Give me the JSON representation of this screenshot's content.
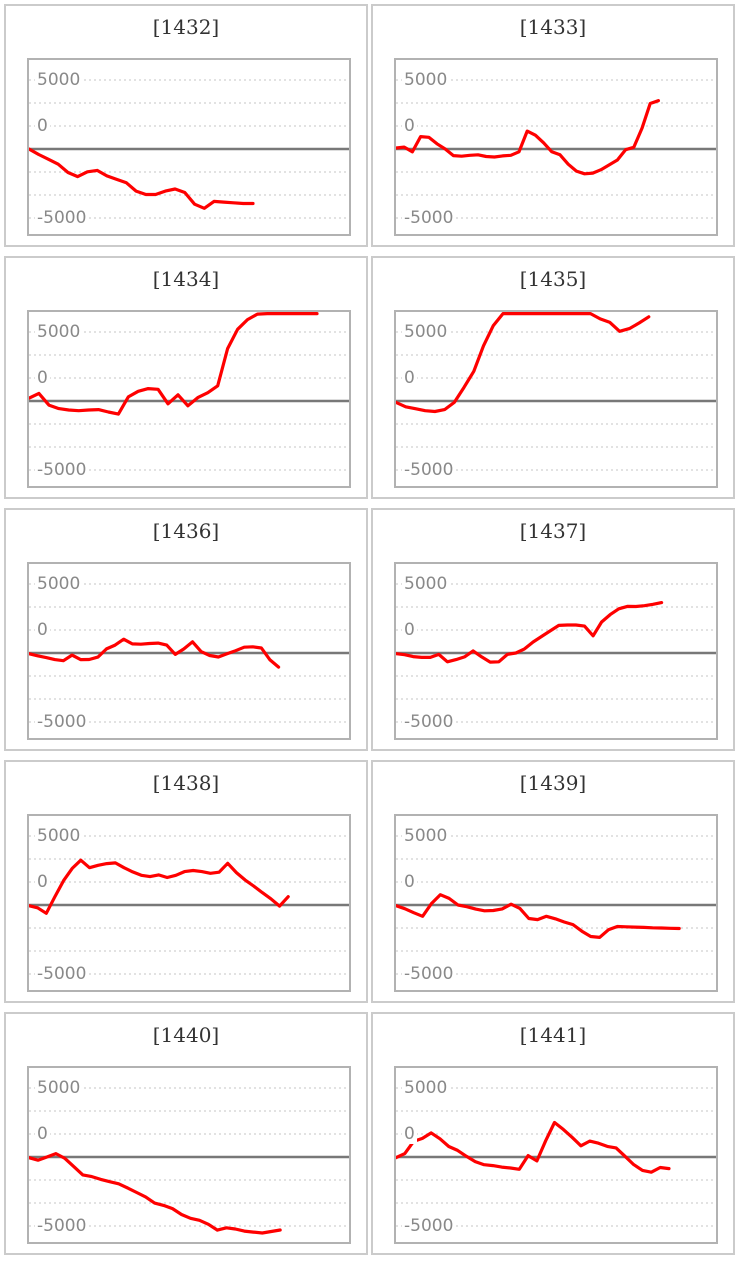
{
  "grid": {
    "rows": 5,
    "cols": 2
  },
  "axis": {
    "tick_labels": {
      "pos": "5000",
      "zero": "0",
      "neg": "-5000"
    },
    "tick_values": [
      5000,
      0,
      -5000
    ],
    "gridline_values": [
      5000,
      3333,
      1667,
      0,
      -1667,
      -3333,
      -5000
    ],
    "ylim": [
      -6300,
      6600
    ],
    "xticks": []
  },
  "style": {
    "line_color": "#fe0000",
    "zero_line_color": "#787878",
    "grid_color": "#e2e2e2",
    "panel_border_color": "#cbcbcb",
    "chart_border_color": "#b2b2b2",
    "label_color": "#898989",
    "title_color": "#333333"
  },
  "chart_data": [
    {
      "type": "line",
      "title": "[1432]",
      "grid": true,
      "legend": "none",
      "ylim": [
        -6300,
        6600
      ],
      "yticks": [
        5000,
        0,
        -5000
      ],
      "end_fraction": 0.7,
      "values": [
        0,
        -400,
        -750,
        -1100,
        -1700,
        -2000,
        -1650,
        -1550,
        -1950,
        -2200,
        -2450,
        -3050,
        -3300,
        -3300,
        -3050,
        -2900,
        -3150,
        -4000,
        -4300,
        -3800,
        -3850,
        -3900,
        -3950,
        -3950
      ]
    },
    {
      "type": "line",
      "title": "[1433]",
      "grid": true,
      "legend": "none",
      "ylim": [
        -6300,
        6600
      ],
      "yticks": [
        5000,
        0,
        -5000
      ],
      "end_fraction": 0.82,
      "values": [
        75,
        140,
        -200,
        900,
        850,
        380,
        0,
        -480,
        -520,
        -460,
        -420,
        -540,
        -580,
        -500,
        -460,
        -200,
        1300,
        1000,
        450,
        -200,
        -420,
        -1100,
        -1600,
        -1800,
        -1750,
        -1500,
        -1150,
        -800,
        -50,
        120,
        1500,
        3300,
        3500
      ]
    },
    {
      "type": "line",
      "title": "[1434]",
      "grid": true,
      "legend": "none",
      "ylim": [
        -6300,
        6600
      ],
      "yticks": [
        5000,
        0,
        -5000
      ],
      "end_fraction": 0.9,
      "values": [
        200,
        550,
        -300,
        -550,
        -650,
        -700,
        -650,
        -620,
        -800,
        -950,
        300,
        700,
        900,
        850,
        -200,
        450,
        -350,
        250,
        600,
        1100,
        3800,
        5200,
        5900,
        6300,
        6550,
        6600,
        6600,
        6600,
        6600,
        6600
      ]
    },
    {
      "type": "line",
      "title": "[1435]",
      "grid": true,
      "legend": "none",
      "ylim": [
        -6300,
        6600
      ],
      "yticks": [
        5000,
        0,
        -5000
      ],
      "end_fraction": 0.79,
      "values": [
        -100,
        -420,
        -560,
        -700,
        -760,
        -620,
        -100,
        1000,
        2150,
        4000,
        5450,
        6350,
        6600,
        6600,
        6600,
        6450,
        6350,
        6550,
        6600,
        6600,
        6350,
        5950,
        5700,
        5050,
        5250,
        5650,
        6100
      ]
    },
    {
      "type": "line",
      "title": "[1436]",
      "grid": true,
      "legend": "none",
      "ylim": [
        -6300,
        6600
      ],
      "yticks": [
        5000,
        0,
        -5000
      ],
      "end_fraction": 0.78,
      "values": [
        -50,
        -200,
        -330,
        -480,
        -560,
        -150,
        -480,
        -470,
        -300,
        300,
        570,
        1000,
        660,
        640,
        690,
        720,
        570,
        -100,
        300,
        810,
        100,
        -180,
        -290,
        -60,
        170,
        420,
        450,
        360,
        -500,
        -1020
      ]
    },
    {
      "type": "line",
      "title": "[1437]",
      "grid": true,
      "legend": "none",
      "ylim": [
        -6300,
        6600
      ],
      "yticks": [
        5000,
        0,
        -5000
      ],
      "end_fraction": 0.83,
      "values": [
        -50,
        -120,
        -260,
        -320,
        -320,
        -100,
        -640,
        -480,
        -280,
        150,
        -280,
        -660,
        -640,
        -100,
        0,
        300,
        800,
        1200,
        1600,
        2000,
        2030,
        2030,
        1950,
        1250,
        2250,
        2780,
        3200,
        3380,
        3370,
        3430,
        3530,
        3650
      ]
    },
    {
      "type": "line",
      "title": "[1438]",
      "grid": true,
      "legend": "none",
      "ylim": [
        -6300,
        6600
      ],
      "yticks": [
        5000,
        0,
        -5000
      ],
      "end_fraction": 0.81,
      "values": [
        -50,
        -200,
        -600,
        600,
        1770,
        2650,
        3250,
        2700,
        2880,
        3000,
        3050,
        2700,
        2400,
        2150,
        2060,
        2180,
        1990,
        2150,
        2420,
        2500,
        2420,
        2300,
        2380,
        3020,
        2350,
        1820,
        1380,
        900,
        450,
        -80,
        600
      ]
    },
    {
      "type": "line",
      "title": "[1439]",
      "grid": true,
      "legend": "none",
      "ylim": [
        -6300,
        6600
      ],
      "yticks": [
        5000,
        0,
        -5000
      ],
      "end_fraction": 0.885,
      "values": [
        -50,
        -270,
        -560,
        -820,
        100,
        750,
        480,
        0,
        -120,
        -300,
        -420,
        -400,
        -280,
        60,
        -250,
        -980,
        -1060,
        -820,
        -1000,
        -1230,
        -1420,
        -1900,
        -2280,
        -2350,
        -1800,
        -1560,
        -1580,
        -1600,
        -1620,
        -1650,
        -1670,
        -1690,
        -1700
      ]
    },
    {
      "type": "line",
      "title": "[1440]",
      "grid": true,
      "legend": "none",
      "ylim": [
        -6300,
        6600
      ],
      "yticks": [
        5000,
        0,
        -5000
      ],
      "end_fraction": 0.785,
      "values": [
        -50,
        -230,
        0,
        250,
        -100,
        -700,
        -1300,
        -1420,
        -1620,
        -1790,
        -1940,
        -2250,
        -2570,
        -2890,
        -3340,
        -3510,
        -3740,
        -4170,
        -4440,
        -4590,
        -4880,
        -5300,
        -5130,
        -5220,
        -5370,
        -5440,
        -5510,
        -5400,
        -5290
      ]
    },
    {
      "type": "line",
      "title": "[1441]",
      "grid": true,
      "legend": "none",
      "ylim": [
        -6300,
        6600
      ],
      "yticks": [
        5000,
        0,
        -5000
      ],
      "end_fraction": 0.853,
      "values": [
        -50,
        250,
        1130,
        1350,
        1750,
        1320,
        760,
        480,
        50,
        -330,
        -560,
        -620,
        -730,
        -800,
        -890,
        100,
        -280,
        1180,
        2500,
        2000,
        1430,
        810,
        1150,
        1000,
        770,
        660,
        60,
        -550,
        -970,
        -1100,
        -760,
        -840
      ]
    }
  ]
}
